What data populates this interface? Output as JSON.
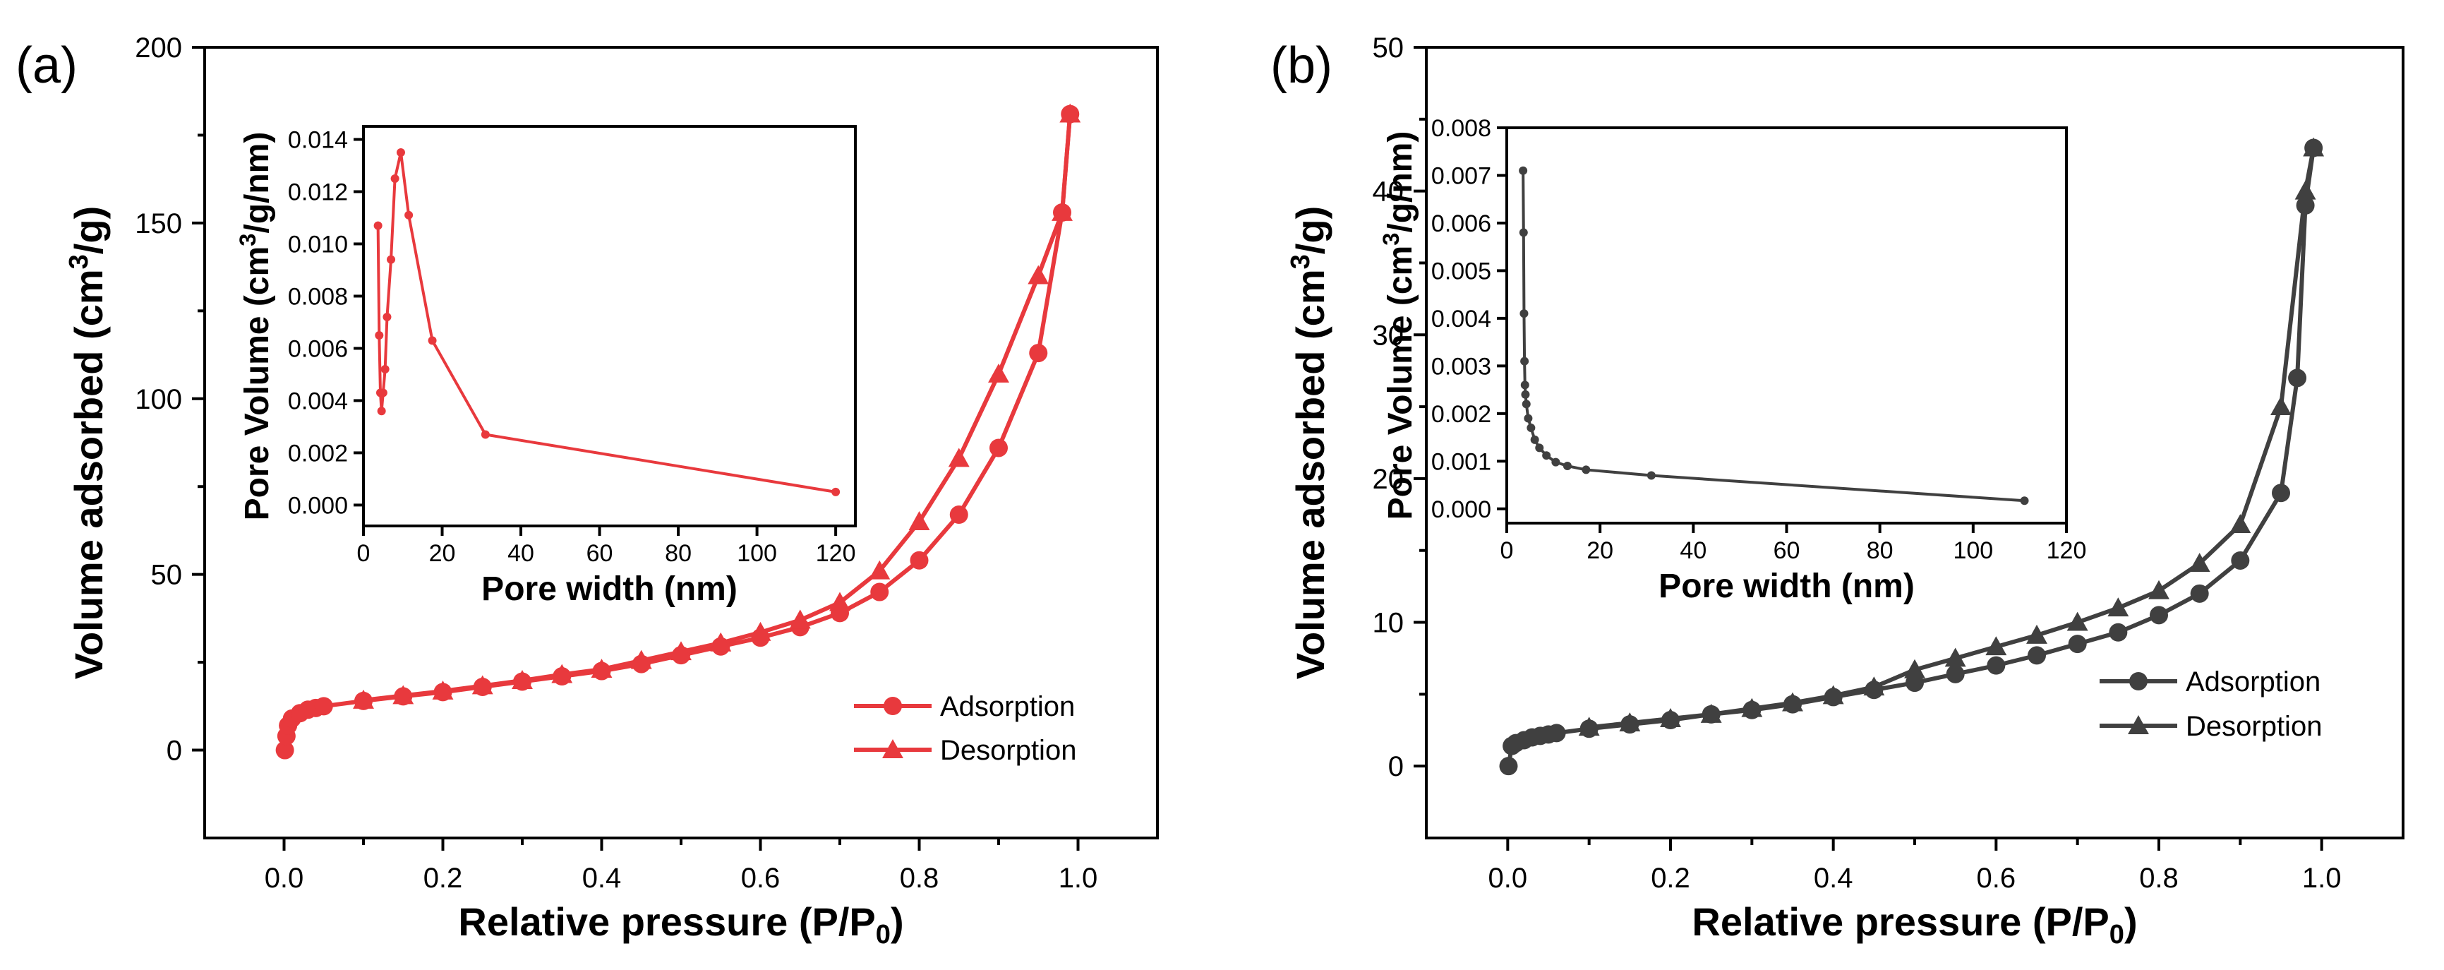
{
  "chart_data": [
    {
      "type": "line",
      "panel_label": "(a)",
      "color": "#e8393d",
      "xlabel": "Relative pressure (P/P",
      "xlabel_sub": "0",
      "xlabel_tail": ")",
      "ylabel": "Volume adsorbed (cm",
      "ylabel_sup": "3",
      "ylabel_tail": "/g)",
      "xlim": [
        -0.1,
        1.1
      ],
      "ylim": [
        -25,
        200
      ],
      "xticks": [
        0.0,
        0.2,
        0.4,
        0.6,
        0.8,
        1.0
      ],
      "xtick_labels": [
        "0.0",
        "0.2",
        "0.4",
        "0.6",
        "0.8",
        "1.0"
      ],
      "yticks": [
        0,
        50,
        100,
        150,
        200
      ],
      "ytick_labels": [
        "0",
        "50",
        "100",
        "150",
        "200"
      ],
      "legend_position": "bottom-right",
      "series": [
        {
          "name": "Adsorption",
          "marker": "circle",
          "x": [
            0.001,
            0.003,
            0.005,
            0.01,
            0.02,
            0.03,
            0.04,
            0.05,
            0.1,
            0.15,
            0.2,
            0.25,
            0.3,
            0.35,
            0.4,
            0.45,
            0.5,
            0.55,
            0.6,
            0.65,
            0.7,
            0.75,
            0.8,
            0.85,
            0.9,
            0.95,
            0.98,
            0.99
          ],
          "y": [
            0,
            4,
            7,
            9,
            10.5,
            11.5,
            12,
            12.5,
            14,
            15.3,
            16.5,
            18,
            19.5,
            21,
            22.5,
            24.5,
            27,
            29.5,
            32,
            35,
            39,
            45,
            54,
            67,
            86,
            113,
            153,
            181
          ]
        },
        {
          "name": "Desorption",
          "marker": "triangle",
          "x": [
            0.99,
            0.98,
            0.95,
            0.9,
            0.85,
            0.8,
            0.75,
            0.7,
            0.65,
            0.6,
            0.55,
            0.5,
            0.45,
            0.4,
            0.35,
            0.3,
            0.25,
            0.2,
            0.15,
            0.1
          ],
          "y": [
            181,
            153,
            135,
            107,
            83,
            65,
            51,
            42,
            37,
            33.5,
            30.5,
            28,
            25.5,
            23,
            21.5,
            19.8,
            18.3,
            16.8,
            15.5,
            14.2
          ]
        }
      ],
      "inset": {
        "xlabel": "Pore width (nm)",
        "ylabel": "Pore Volume (cm",
        "ylabel_sup": "3",
        "ylabel_tail": "/g/nm)",
        "xlim": [
          0,
          125
        ],
        "ylim": [
          -0.0008,
          0.0145
        ],
        "xticks": [
          0,
          20,
          40,
          60,
          80,
          100,
          120
        ],
        "xtick_labels": [
          "0",
          "20",
          "40",
          "60",
          "80",
          "100",
          "120"
        ],
        "yticks": [
          0,
          0.002,
          0.004,
          0.006,
          0.008,
          0.01,
          0.012,
          0.014
        ],
        "ytick_labels": [
          "0.000",
          "0.002",
          "0.004",
          "0.006",
          "0.008",
          "0.010",
          "0.012",
          "0.014"
        ],
        "x": [
          3.7,
          4.0,
          4.3,
          4.6,
          5.0,
          5.5,
          6.0,
          7.0,
          8.0,
          9.5,
          11.5,
          17.5,
          31,
          120
        ],
        "y": [
          0.0107,
          0.0065,
          0.0043,
          0.0036,
          0.0043,
          0.0052,
          0.0072,
          0.0094,
          0.0125,
          0.0135,
          0.0111,
          0.0063,
          0.0027,
          0.0005
        ]
      }
    },
    {
      "type": "line",
      "panel_label": "(b)",
      "color": "#404040",
      "xlabel": "Relative pressure (P/P",
      "xlabel_sub": "0",
      "xlabel_tail": ")",
      "ylabel": "Volume adsorbed (cm",
      "ylabel_sup": "3",
      "ylabel_tail": "/g)",
      "xlim": [
        -0.1,
        1.1
      ],
      "ylim": [
        -5,
        50
      ],
      "xticks": [
        0.0,
        0.2,
        0.4,
        0.6,
        0.8,
        1.0
      ],
      "xtick_labels": [
        "0.0",
        "0.2",
        "0.4",
        "0.6",
        "0.8",
        "1.0"
      ],
      "yticks": [
        0,
        10,
        20,
        30,
        40,
        50
      ],
      "ytick_labels": [
        "0",
        "10",
        "20",
        "30",
        "40",
        "50"
      ],
      "legend_position": "bottom-right",
      "series": [
        {
          "name": "Adsorption",
          "marker": "circle",
          "x": [
            0.001,
            0.005,
            0.01,
            0.02,
            0.03,
            0.04,
            0.05,
            0.06,
            0.1,
            0.15,
            0.2,
            0.25,
            0.3,
            0.35,
            0.4,
            0.45,
            0.5,
            0.55,
            0.6,
            0.65,
            0.7,
            0.75,
            0.8,
            0.85,
            0.9,
            0.95,
            0.97,
            0.98,
            0.99
          ],
          "y": [
            0,
            1.4,
            1.6,
            1.8,
            2.0,
            2.1,
            2.2,
            2.3,
            2.6,
            2.9,
            3.2,
            3.6,
            3.9,
            4.3,
            4.8,
            5.3,
            5.8,
            6.4,
            7.0,
            7.7,
            8.5,
            9.3,
            10.5,
            12.0,
            14.3,
            19.0,
            27.0,
            39.0,
            43.0
          ]
        },
        {
          "name": "Desorption",
          "marker": "triangle",
          "x": [
            0.99,
            0.98,
            0.95,
            0.9,
            0.85,
            0.8,
            0.75,
            0.7,
            0.65,
            0.6,
            0.55,
            0.5,
            0.45,
            0.4,
            0.35,
            0.3,
            0.25,
            0.2,
            0.15,
            0.1
          ],
          "y": [
            43,
            40,
            25,
            16.8,
            14.1,
            12.2,
            11.0,
            10.0,
            9.1,
            8.3,
            7.5,
            6.7,
            5.5,
            4.9,
            4.4,
            4.0,
            3.6,
            3.3,
            3.0,
            2.7
          ]
        }
      ],
      "inset": {
        "xlabel": "Pore width (nm)",
        "ylabel": "Pore Volume (cm",
        "ylabel_sup": "3",
        "ylabel_tail": "/g/nm)",
        "xlim": [
          0,
          120
        ],
        "ylim": [
          -0.0003,
          0.008
        ],
        "xticks": [
          0,
          20,
          40,
          60,
          80,
          100,
          120
        ],
        "xtick_labels": [
          "0",
          "20",
          "40",
          "60",
          "80",
          "100",
          "120"
        ],
        "yticks": [
          0,
          0.001,
          0.002,
          0.003,
          0.004,
          0.005,
          0.006,
          0.007,
          0.008
        ],
        "ytick_labels": [
          "0.000",
          "0.001",
          "0.002",
          "0.003",
          "0.004",
          "0.005",
          "0.006",
          "0.007",
          "0.008"
        ],
        "x": [
          3.5,
          3.6,
          3.7,
          3.8,
          3.9,
          4.0,
          4.2,
          4.6,
          5.2,
          6.0,
          7.0,
          8.5,
          10.5,
          13.0,
          17.0,
          31.0,
          111.0
        ],
        "y": [
          0.0071,
          0.0058,
          0.0041,
          0.0031,
          0.0026,
          0.0024,
          0.0022,
          0.0019,
          0.0017,
          0.00145,
          0.00128,
          0.00112,
          0.00098,
          0.0009,
          0.00082,
          0.0007,
          0.00017
        ]
      }
    }
  ]
}
